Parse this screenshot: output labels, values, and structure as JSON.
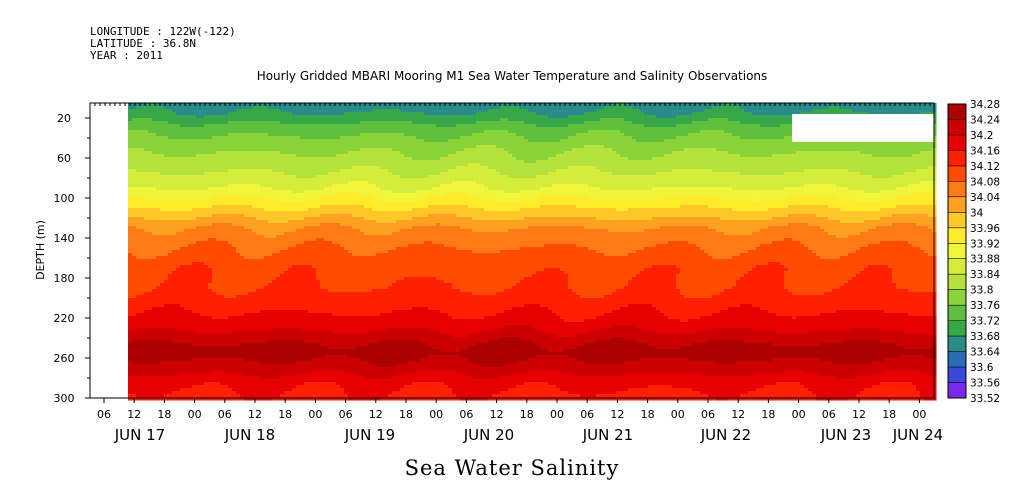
{
  "header": {
    "lines": [
      "LONGITUDE : 122W(-122)",
      "LATITUDE : 36.8N",
      "YEAR : 2011"
    ]
  },
  "chart_data": {
    "type": "heatmap",
    "title": "Hourly Gridded MBARI Mooring M1 Sea Water Temperature and Salinity Observations",
    "xlabel": "Sea Water Salinity",
    "ylabel": "DEPTH (m)",
    "y_ticks": [
      20,
      60,
      100,
      140,
      180,
      220,
      260,
      300
    ],
    "ylim": [
      300,
      5
    ],
    "x_hour_ticks": [
      "06",
      "12",
      "18",
      "00",
      "06",
      "12",
      "18",
      "00",
      "06",
      "12",
      "18",
      "00",
      "06",
      "12",
      "18",
      "00",
      "06",
      "12",
      "18",
      "00",
      "06",
      "12",
      "18",
      "00",
      "06",
      "12",
      "18",
      "00"
    ],
    "x_day_labels": [
      "JUN 17",
      "JUN 18",
      "JUN 19",
      "JUN 20",
      "JUN 21",
      "JUN 22",
      "JUN 23",
      "JUN 24"
    ],
    "colorbar_levels": [
      34.28,
      34.24,
      34.2,
      34.16,
      34.12,
      34.08,
      34.04,
      34,
      33.96,
      33.92,
      33.88,
      33.84,
      33.8,
      33.76,
      33.72,
      33.68,
      33.64,
      33.6,
      33.56,
      33.52
    ],
    "colorbar_colors": [
      "#8b0000",
      "#ad0000",
      "#cc0000",
      "#e80000",
      "#ff2000",
      "#ff4c00",
      "#ff7a14",
      "#ffa020",
      "#ffc828",
      "#ffeb2a",
      "#f0f53a",
      "#d4ec3a",
      "#b4e23a",
      "#8ad43a",
      "#5ec03c",
      "#36a848",
      "#2a8c8a",
      "#2a6cb8",
      "#3c48d8",
      "#7a28f0",
      "#c000ff"
    ],
    "depth_profile": [
      {
        "depth": 5,
        "value": 33.66
      },
      {
        "depth": 15,
        "value": 33.68
      },
      {
        "depth": 30,
        "value": 33.74
      },
      {
        "depth": 50,
        "value": 33.79
      },
      {
        "depth": 70,
        "value": 33.83
      },
      {
        "depth": 90,
        "value": 33.88
      },
      {
        "depth": 110,
        "value": 33.96
      },
      {
        "depth": 130,
        "value": 34.04
      },
      {
        "depth": 150,
        "value": 34.08
      },
      {
        "depth": 170,
        "value": 34.11
      },
      {
        "depth": 190,
        "value": 34.12
      },
      {
        "depth": 210,
        "value": 34.15
      },
      {
        "depth": 230,
        "value": 34.19
      },
      {
        "depth": 245,
        "value": 34.24
      },
      {
        "depth": 255,
        "value": 34.26
      },
      {
        "depth": 270,
        "value": 34.22
      },
      {
        "depth": 285,
        "value": 34.17
      },
      {
        "depth": 300,
        "value": 34.15
      }
    ]
  }
}
